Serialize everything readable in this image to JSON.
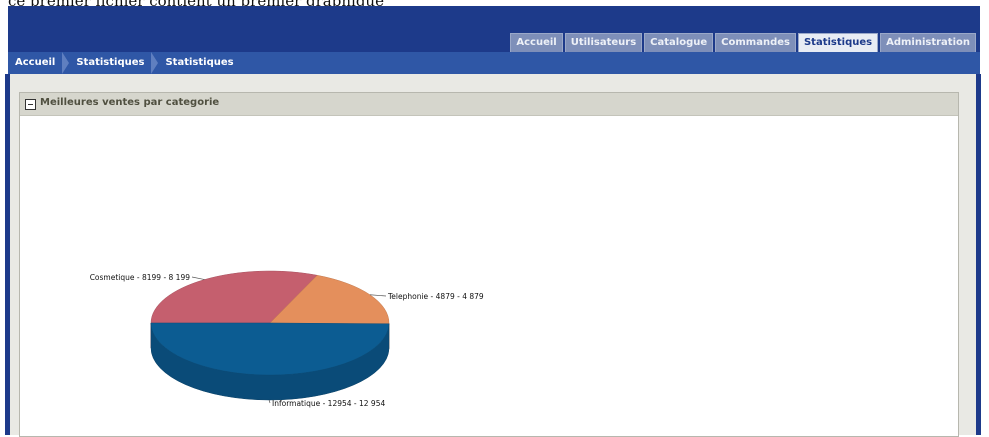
{
  "caption": "ce premier fichier contient un premier graphique",
  "header": {
    "tabs": [
      {
        "label": "Accueil",
        "active": false
      },
      {
        "label": "Utilisateurs",
        "active": false
      },
      {
        "label": "Catalogue",
        "active": false
      },
      {
        "label": "Commandes",
        "active": false
      },
      {
        "label": "Statistiques",
        "active": true
      },
      {
        "label": "Administration",
        "active": false
      }
    ]
  },
  "breadcrumb": [
    "Accueil",
    "Statistiques",
    "Statistiques"
  ],
  "panel": {
    "title": "Meilleures ventes par categorie"
  },
  "colors": {
    "header_bg": "#1d3a8a",
    "breadcrumb_bg": "#2f57a6",
    "slice_cosmetique": "#c55f6e",
    "slice_telephonie": "#e48f5c",
    "slice_informatique": "#0c5c92"
  },
  "chart_data": {
    "type": "pie",
    "style": "3d",
    "categories": [
      "Cosmetique",
      "Telephonie",
      "Informatique"
    ],
    "values": [
      8199,
      4879,
      12954
    ],
    "labels": [
      "Cosmetique - 8199 - 8 199",
      "Telephonie - 4879 - 4 879",
      "Informatique - 12954 - 12 954"
    ]
  }
}
